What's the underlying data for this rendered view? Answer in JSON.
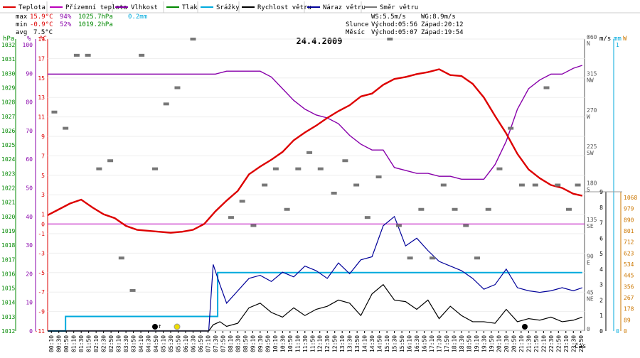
{
  "chart_data": {
    "type": "line",
    "title": "24.4.2009",
    "xlabel": "čas",
    "legend": [
      {
        "name": "Teplota",
        "color": "#dd0000"
      },
      {
        "name": "Přízemní teplota",
        "color": "#bb00bb"
      },
      {
        "name": "Vlhkost",
        "color": "#8800aa"
      },
      {
        "name": "Tlak",
        "color": "#008800"
      },
      {
        "name": "Srážky",
        "color": "#00aadd"
      },
      {
        "name": "Rychlost větru",
        "color": "#000000"
      },
      {
        "name": "Náraz větru",
        "color": "#000099"
      },
      {
        "name": "Směr větru",
        "color": "#777777"
      }
    ],
    "stats": {
      "max_label": "max",
      "max_temp": "15.9°C",
      "max_hum": "94%",
      "max_press": "1025.7hPa",
      "max_rain": "0.2mm",
      "min_label": "min",
      "min_temp": "-0.9°C",
      "min_hum": "52%",
      "min_press": "1019.2hPa",
      "avg_label": "avg",
      "avg_temp": "7.5°C",
      "ws": "WS:5.5m/s",
      "wg": "WG:8.9m/s",
      "sun_label": "Slunce",
      "sun_rise": "Východ:05:56",
      "sun_set": "Západ:20:12",
      "moon_label": "Měsíc",
      "moon_rise": "Východ:05:07",
      "moon_set": "Západ:19:54"
    },
    "axis_units": {
      "press": "hPa",
      "hum": "%",
      "temp": "°C",
      "dir": "°",
      "speed": "m/s",
      "rain": "mm",
      "power": "W"
    },
    "press_ticks": [
      "1032",
      "1031",
      "1030",
      "1029",
      "1028",
      "1027",
      "1026",
      "1025",
      "1024",
      "1023",
      "1022",
      "1021",
      "1020",
      "1019",
      "1018",
      "1017",
      "1016",
      "1015",
      "1014",
      "1013",
      "1012"
    ],
    "hum_ticks": [
      "100",
      "90",
      "80",
      "70",
      "60",
      "50",
      "40",
      "30",
      "20",
      "10",
      "0"
    ],
    "temp_ticks": [
      "19",
      "17",
      "15",
      "13",
      "11",
      "9",
      "7",
      "5",
      "3",
      "1",
      "-1",
      "-3",
      "-5",
      "-7",
      "-9",
      "-11"
    ],
    "temp_zero_label": "0",
    "dir_ticks": [
      [
        "360",
        "N"
      ],
      [
        "315",
        "NW"
      ],
      [
        "270",
        "W"
      ],
      [
        "225",
        "SW"
      ],
      [
        "180",
        "S"
      ],
      [
        "135",
        "SE"
      ],
      [
        "90",
        "E"
      ],
      [
        "45",
        "NE"
      ],
      [
        "0",
        ""
      ]
    ],
    "speed_ticks": [
      "9",
      "8",
      "7",
      "6",
      "5",
      "4",
      "3",
      "2",
      "1",
      "0"
    ],
    "rain_ticks": [
      "1",
      "0"
    ],
    "power_ticks": [
      "1068",
      "979",
      "890",
      "801",
      "712",
      "623",
      "534",
      "445",
      "356",
      "267",
      "178",
      "89",
      "0"
    ],
    "time_ticks": [
      "00:10",
      "00:30",
      "00:50",
      "01:10",
      "01:30",
      "01:50",
      "02:10",
      "02:30",
      "02:50",
      "03:10",
      "03:30",
      "03:50",
      "04:10",
      "04:30",
      "04:50",
      "05:10",
      "05:30",
      "05:50",
      "06:10",
      "06:30",
      "06:50",
      "07:10",
      "07:30",
      "07:50",
      "08:10",
      "08:30",
      "08:50",
      "09:10",
      "09:30",
      "09:50",
      "10:10",
      "10:30",
      "10:50",
      "11:10",
      "11:30",
      "11:50",
      "12:10",
      "12:30",
      "12:50",
      "13:10",
      "13:30",
      "13:50",
      "14:10",
      "14:30",
      "14:50",
      "15:10",
      "15:30",
      "15:50",
      "16:10",
      "16:30",
      "16:50",
      "17:10",
      "17:30",
      "17:50",
      "18:10",
      "18:30",
      "18:50",
      "19:10",
      "19:30",
      "19:50",
      "20:10",
      "20:30",
      "20:50",
      "21:10",
      "21:30",
      "21:50",
      "22:10",
      "22:30",
      "22:50",
      "23:10",
      "23:30",
      "23:50"
    ],
    "series": [
      {
        "name": "Teplota",
        "unit": "°C",
        "x_hours": [
          0,
          0.5,
          1,
          1.5,
          2,
          2.5,
          3,
          3.5,
          4,
          4.5,
          5,
          5.5,
          6,
          6.5,
          7,
          7.5,
          8,
          8.5,
          9,
          9.5,
          10,
          10.5,
          11,
          11.5,
          12,
          12.5,
          13,
          13.5,
          14,
          14.5,
          15,
          15.5,
          16,
          16.5,
          17,
          17.5,
          18,
          18.5,
          19,
          19.5,
          20,
          20.5,
          21,
          21.5,
          22,
          22.5,
          23,
          23.5,
          23.9
        ],
        "values": [
          0.9,
          1.5,
          2.1,
          2.5,
          1.7,
          1.0,
          0.6,
          -0.2,
          -0.6,
          -0.7,
          -0.8,
          -0.9,
          -0.8,
          -0.6,
          0,
          1.3,
          2.4,
          3.4,
          5.1,
          5.9,
          6.6,
          7.4,
          8.6,
          9.4,
          10.1,
          10.9,
          11.6,
          12.2,
          13.1,
          13.4,
          14.3,
          14.9,
          15.1,
          15.4,
          15.6,
          15.9,
          15.3,
          15.2,
          14.4,
          13.0,
          11.1,
          9.3,
          7.2,
          5.6,
          4.7,
          4.0,
          3.7,
          3.1,
          2.9
        ]
      },
      {
        "name": "Vlhkost",
        "unit": "%",
        "x_hours": [
          0,
          1,
          2,
          3,
          4,
          5,
          6,
          7,
          7.5,
          8,
          8.5,
          9,
          9.5,
          10,
          10.5,
          11,
          11.5,
          12,
          12.5,
          13,
          13.5,
          14,
          14.5,
          15,
          15.5,
          16,
          16.5,
          17,
          17.5,
          18,
          18.5,
          19,
          19.5,
          20,
          20.5,
          21,
          21.5,
          22,
          22.5,
          23,
          23.5,
          23.9
        ],
        "values": [
          88,
          88,
          88,
          88,
          88,
          88,
          88,
          88,
          88,
          89,
          89,
          89,
          89,
          87,
          83,
          79,
          76,
          74,
          73,
          71,
          67,
          64,
          62,
          62,
          56,
          55,
          54,
          54,
          53,
          53,
          52,
          52,
          52,
          57,
          65,
          76,
          83,
          86,
          88,
          88,
          90,
          91
        ]
      },
      {
        "name": "Srážky",
        "unit": "mm",
        "x_hours": [
          0,
          0.6,
          0.8,
          7.1,
          7.2,
          7.5,
          7.6,
          23.9
        ],
        "values": [
          0,
          0,
          0.05,
          0.05,
          0.05,
          0.05,
          0.2,
          0.2
        ]
      },
      {
        "name": "Rychlost větru",
        "unit": "m/s",
        "x_hours": [
          0,
          7.2,
          7.4,
          7.7,
          8,
          8.5,
          9,
          9.5,
          10,
          10.5,
          11,
          11.5,
          12,
          12.5,
          13,
          13.5,
          14,
          14.5,
          15,
          15.5,
          16,
          16.5,
          17,
          17.5,
          18,
          18.5,
          19,
          19.5,
          20,
          20.5,
          21,
          21.5,
          22,
          22.5,
          23,
          23.5,
          23.9
        ],
        "values": [
          0,
          0,
          0.4,
          0.6,
          0.3,
          0.5,
          1.5,
          1.8,
          1.2,
          0.9,
          1.5,
          1.0,
          1.4,
          1.6,
          2.0,
          1.8,
          1.0,
          2.4,
          3.0,
          2.0,
          1.9,
          1.4,
          2.0,
          0.8,
          1.6,
          1.0,
          0.6,
          0.6,
          0.5,
          1.4,
          0.6,
          0.8,
          0.7,
          0.9,
          0.6,
          0.7,
          0.9
        ]
      },
      {
        "name": "Náraz větru",
        "unit": "m/s",
        "x_hours": [
          0,
          7.2,
          7.4,
          7.7,
          8,
          8.5,
          9,
          9.5,
          10,
          10.5,
          11,
          11.5,
          12,
          12.5,
          13,
          13.5,
          14,
          14.5,
          15,
          15.5,
          16,
          16.5,
          17,
          17.5,
          18,
          18.5,
          19,
          19.5,
          20,
          20.5,
          21,
          21.5,
          22,
          22.5,
          23,
          23.5,
          23.9
        ],
        "values": [
          0,
          0,
          4.3,
          3.0,
          1.8,
          2.6,
          3.4,
          3.6,
          3.2,
          3.8,
          3.5,
          4.2,
          3.9,
          3.4,
          4.4,
          3.7,
          4.6,
          4.8,
          6.8,
          7.4,
          5.5,
          6.0,
          5.2,
          4.5,
          4.2,
          3.9,
          3.4,
          2.7,
          3.0,
          4.0,
          2.8,
          2.6,
          2.5,
          2.6,
          2.8,
          2.6,
          2.8
        ]
      },
      {
        "name": "Směr větru",
        "unit": "°",
        "type": "scatter",
        "x_hours": [
          0.3,
          0.8,
          1.3,
          1.8,
          2.3,
          2.8,
          3.3,
          3.8,
          4.2,
          4.8,
          5.3,
          5.8,
          6.5,
          8.2,
          8.7,
          9.2,
          9.7,
          10.2,
          10.7,
          11.2,
          11.7,
          12.2,
          12.8,
          13.3,
          13.8,
          14.3,
          14.8,
          15.3,
          15.7,
          16.2,
          16.7,
          17.2,
          17.7,
          18.2,
          18.7,
          19.2,
          19.7,
          20.2,
          20.7,
          21.2,
          21.8,
          22.3,
          22.8,
          23.3,
          23.7
        ],
        "values": [
          270,
          250,
          340,
          340,
          200,
          210,
          90,
          50,
          340,
          200,
          280,
          300,
          360,
          140,
          160,
          130,
          180,
          200,
          150,
          200,
          220,
          200,
          170,
          210,
          180,
          140,
          190,
          360,
          130,
          90,
          150,
          90,
          180,
          150,
          130,
          90,
          150,
          200,
          250,
          180,
          180,
          300,
          180,
          150,
          180
        ]
      }
    ]
  }
}
